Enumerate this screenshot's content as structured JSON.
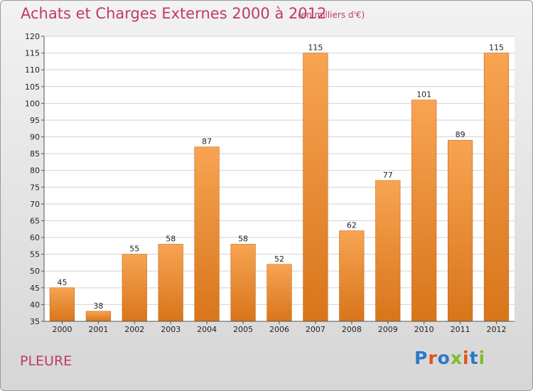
{
  "chart_data": {
    "type": "bar",
    "title": "Achats et Charges Externes 2000 à 2012",
    "subtitle": "(en milliers d'€)",
    "categories": [
      "2000",
      "2001",
      "2002",
      "2003",
      "2004",
      "2005",
      "2006",
      "2007",
      "2008",
      "2009",
      "2010",
      "2011",
      "2012"
    ],
    "values": [
      45,
      38,
      55,
      58,
      87,
      58,
      52,
      115,
      62,
      77,
      101,
      89,
      115
    ],
    "ylim": [
      35,
      120
    ],
    "yticks": [
      35,
      40,
      45,
      50,
      55,
      60,
      65,
      70,
      75,
      80,
      85,
      90,
      95,
      100,
      105,
      110,
      115,
      120
    ],
    "xlabel": "",
    "ylabel": "",
    "grid": true,
    "colors": {
      "bar_top": "#f7a452",
      "bar_bottom": "#d8751b",
      "bar_edge": "#c8671a"
    }
  },
  "footer": {
    "commune": "PLEURE",
    "logo_text": "Proxiti",
    "logo_colors": [
      "#2b78c8",
      "#e2531b",
      "#2b78c8",
      "#7bbf2a",
      "#e2531b",
      "#2b78c8",
      "#7bbf2a"
    ]
  }
}
